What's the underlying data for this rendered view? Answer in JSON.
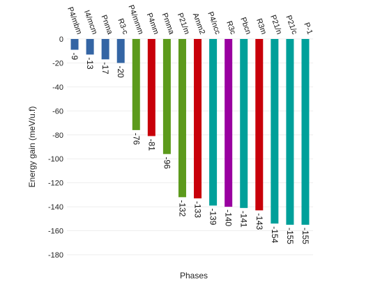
{
  "chart_data": {
    "type": "bar",
    "orientation": "vertical",
    "title": "",
    "xlabel": "Phases",
    "ylabel": "Energy gain (meV/u.f)",
    "ylim": [
      -180,
      0
    ],
    "yticks": [
      0,
      -20,
      -40,
      -60,
      -80,
      -100,
      -120,
      -140,
      -160,
      -180
    ],
    "grid": true,
    "legend": "none",
    "category_label_position": "top-rotated",
    "data_label_position": "below-bar-rotated",
    "categories": [
      "P4/mbm",
      "I4/mcm",
      "Pnma",
      "R3-c",
      "P4/mmm",
      "P4mm",
      "Pmma",
      "P21/m",
      "Amm2",
      "P4/ncc",
      "R3c",
      "Pbcn",
      "R3m",
      "P21/n",
      "P21/c",
      "P-1"
    ],
    "values": [
      -9,
      -13,
      -17,
      -20,
      -76,
      -81,
      -96,
      -132,
      -133,
      -139,
      -140,
      -141,
      -143,
      -154,
      -155,
      -155
    ],
    "data_labels": [
      "-9",
      "-13",
      "-17",
      "-20",
      "-76",
      "-81",
      "-96",
      "-132",
      "-133",
      "-139",
      "-140",
      "-141",
      "-143",
      "-154",
      "-155",
      "-155"
    ],
    "colors": [
      "#3465a4",
      "#3465a4",
      "#3465a4",
      "#3465a4",
      "#5c9a1c",
      "#c8000a",
      "#5c9a1c",
      "#5c9a1c",
      "#c8000a",
      "#00a09a",
      "#9900a0",
      "#00a09a",
      "#c8000a",
      "#00a09a",
      "#00a09a",
      "#00a09a"
    ]
  }
}
